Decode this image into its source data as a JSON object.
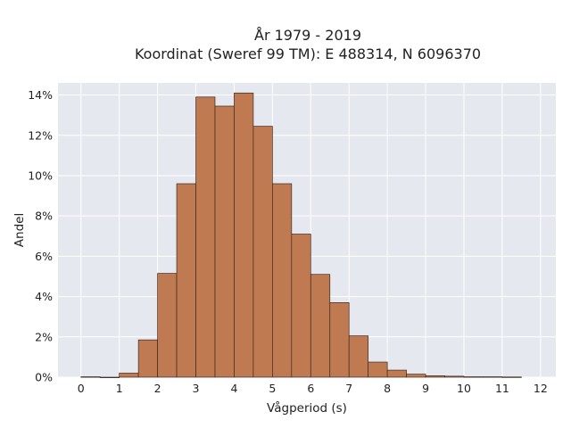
{
  "chart_data": {
    "type": "bar",
    "title_line1": "År 1979 - 2019",
    "title_line2": "Koordinat (Sweref 99 TM): E 488314, N 6096370",
    "xlabel": "Vågperiod (s)",
    "ylabel": "Andel",
    "xlim": [
      -0.6,
      12.4
    ],
    "ylim": [
      0,
      14.6
    ],
    "x_ticks": [
      0,
      1,
      2,
      3,
      4,
      5,
      6,
      7,
      8,
      9,
      10,
      11,
      12
    ],
    "x_tick_labels": [
      "0",
      "1",
      "2",
      "3",
      "4",
      "5",
      "6",
      "7",
      "8",
      "9",
      "10",
      "11",
      "12"
    ],
    "y_ticks": [
      0,
      2,
      4,
      6,
      8,
      10,
      12,
      14
    ],
    "y_tick_labels": [
      "0%",
      "2%",
      "4%",
      "6%",
      "8%",
      "10%",
      "12%",
      "14%"
    ],
    "bin_width": 0.5,
    "bins": [
      {
        "x0": 0.0,
        "value": 0.02
      },
      {
        "x0": 0.5,
        "value": 0.0
      },
      {
        "x0": 1.0,
        "value": 0.2
      },
      {
        "x0": 1.5,
        "value": 1.85
      },
      {
        "x0": 2.0,
        "value": 5.15
      },
      {
        "x0": 2.5,
        "value": 9.6
      },
      {
        "x0": 3.0,
        "value": 13.9
      },
      {
        "x0": 3.5,
        "value": 13.45
      },
      {
        "x0": 4.0,
        "value": 14.1
      },
      {
        "x0": 4.5,
        "value": 12.45
      },
      {
        "x0": 5.0,
        "value": 9.6
      },
      {
        "x0": 5.5,
        "value": 7.1
      },
      {
        "x0": 6.0,
        "value": 5.1
      },
      {
        "x0": 6.5,
        "value": 3.7
      },
      {
        "x0": 7.0,
        "value": 2.05
      },
      {
        "x0": 7.5,
        "value": 0.75
      },
      {
        "x0": 8.0,
        "value": 0.35
      },
      {
        "x0": 8.5,
        "value": 0.15
      },
      {
        "x0": 9.0,
        "value": 0.07
      },
      {
        "x0": 9.5,
        "value": 0.05
      },
      {
        "x0": 10.0,
        "value": 0.02
      },
      {
        "x0": 10.5,
        "value": 0.02
      },
      {
        "x0": 11.0,
        "value": 0.01
      }
    ],
    "grid": true,
    "colors": {
      "bar_fill": "#c07a52",
      "bar_stroke": "#3d2a20",
      "plot_background": "#e6e8f0",
      "grid": "#ffffff",
      "text": "#222222"
    }
  }
}
